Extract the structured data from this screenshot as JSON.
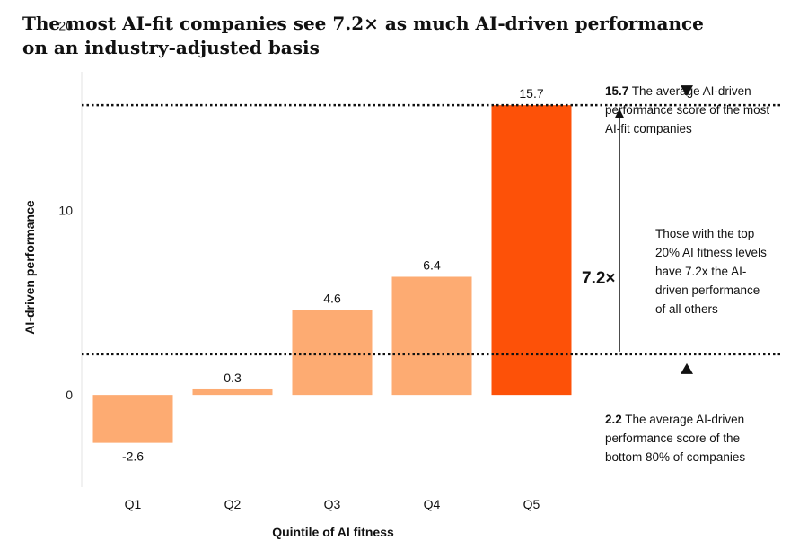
{
  "title": "The most AI-fit companies see 7.2× as much AI-driven performance on an industry-adjusted basis",
  "chart_data": {
    "type": "bar",
    "categories": [
      "Q1",
      "Q2",
      "Q3",
      "Q4",
      "Q5"
    ],
    "values": [
      -2.6,
      0.3,
      4.6,
      6.4,
      15.7
    ],
    "value_labels": [
      "-2.6",
      "0.3",
      "4.6",
      "6.4",
      "15.7"
    ],
    "xlabel": "Quintile of AI fitness",
    "ylabel": "AI-driven performance",
    "ylim": [
      -5,
      20
    ],
    "yticks": [
      0,
      10,
      20
    ],
    "bar_colors": [
      "#fdab72",
      "#fdab72",
      "#fdab72",
      "#fdab72",
      "#fd5108"
    ],
    "grid": false,
    "reference_lines": [
      {
        "value": 15.7,
        "style": "dotted",
        "label_value": "15.7",
        "label_text": "The average AI-driven performance score of the most AI-fit companies"
      },
      {
        "value": 2.2,
        "style": "dotted",
        "label_value": "2.2",
        "label_text": "The average AI-driven performance score of the bottom 80% of companies"
      }
    ],
    "multiple": "7.2×",
    "multiple_note": "Those with the top 20% AI fitness levels have 7.2x the AI-driven performance of all others"
  }
}
